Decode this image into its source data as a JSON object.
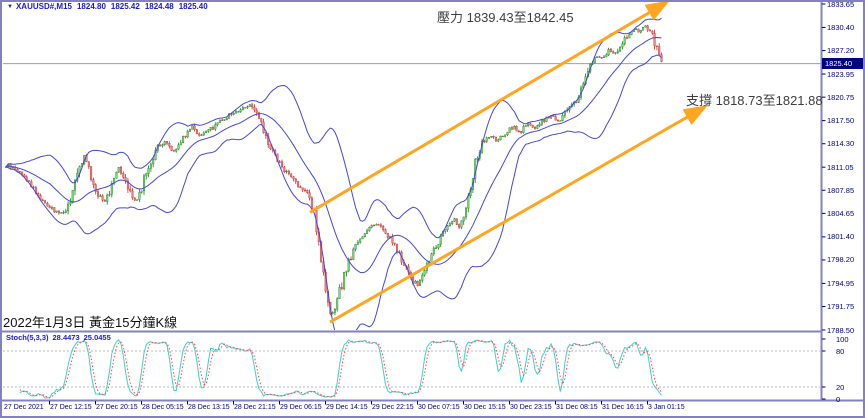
{
  "header": {
    "dropdown_icon": "▼",
    "symbol": "XAUUSD#,M15",
    "open": "1824.80",
    "high": "1825.42",
    "low": "1824.48",
    "close": "1825.40"
  },
  "annotations": {
    "resistance": "壓力 1839.43至1842.45",
    "support": "支撐 1818.73至1821.88",
    "caption": "2022年1月3日 黃金15分鐘K線"
  },
  "price_axis": {
    "tick_labels": [
      "1833.65",
      "1830.40",
      "1827.20",
      "1823.95",
      "1820.75",
      "1817.50",
      "1814.30",
      "1811.05",
      "1807.85",
      "1804.65",
      "1801.40",
      "1798.20",
      "1794.95",
      "1791.75",
      "1788.50"
    ],
    "current_price": "1825.40"
  },
  "stoch_panel": {
    "name": "Stoch(5,3,3)",
    "k": "28.4473",
    "d": "25.0455",
    "levels": [
      "100",
      "80",
      "20",
      "0"
    ]
  },
  "time_axis": {
    "labels": [
      "27 Dec 2021",
      "27 Dec 12:15",
      "27 Dec 20:15",
      "28 Dec 05:15",
      "28 Dec 13:15",
      "28 Dec 21:15",
      "29 Dec 06:15",
      "29 Dec 14:15",
      "29 Dec 22:15",
      "30 Dec 07:15",
      "30 Dec 15:15",
      "30 Dec 23:15",
      "31 Dec 08:15",
      "31 Dec 16:15",
      "3 Jan 01:15"
    ]
  },
  "chart_data": {
    "type": "candlestick",
    "symbol": "XAUUSD#",
    "timeframe": "M15",
    "title": "2022年1月3日 黃金15分鐘K線",
    "last_ohlc": {
      "open": 1824.8,
      "high": 1825.42,
      "low": 1824.48,
      "close": 1825.4
    },
    "last_price": 1825.4,
    "resistance_zone": [
      1839.43,
      1842.45
    ],
    "support_zone": [
      1818.73,
      1821.88
    ],
    "y_axis": {
      "max": 1833.65,
      "min": 1788.5,
      "ticks": [
        1833.65,
        1830.4,
        1827.2,
        1823.95,
        1820.75,
        1817.5,
        1814.3,
        1811.05,
        1807.85,
        1804.65,
        1801.4,
        1798.2,
        1794.95,
        1791.75,
        1788.5
      ]
    },
    "x_axis": {
      "ticks": [
        "27 Dec 2021",
        "27 Dec 12:15",
        "27 Dec 20:15",
        "28 Dec 05:15",
        "28 Dec 13:15",
        "28 Dec 21:15",
        "29 Dec 06:15",
        "29 Dec 14:15",
        "29 Dec 22:15",
        "30 Dec 07:15",
        "30 Dec 15:15",
        "30 Dec 23:15",
        "31 Dec 08:15",
        "31 Dec 16:15",
        "3 Jan 01:15"
      ]
    },
    "indicators": {
      "bollinger": {
        "period": 20,
        "deviation": 2
      },
      "stochastic": {
        "settings": [
          5,
          3,
          3
        ],
        "k": 28.4473,
        "d": 25.0455,
        "levels": [
          80,
          20
        ],
        "range": [
          0,
          100
        ]
      }
    },
    "trend_channel": {
      "upper": [
        [
          310,
          1804.8
        ],
        [
          662,
          1833.5
        ]
      ],
      "lower": [
        [
          330,
          1789.6
        ],
        [
          700,
          1819.0
        ]
      ]
    },
    "price_path_anchors": [
      [
        8,
        1811.2
      ],
      [
        18,
        1810.6
      ],
      [
        28,
        1809.2
      ],
      [
        40,
        1806.8
      ],
      [
        52,
        1805.2
      ],
      [
        62,
        1804.6
      ],
      [
        70,
        1806.0
      ],
      [
        78,
        1810.5
      ],
      [
        84,
        1812.6
      ],
      [
        90,
        1810.0
      ],
      [
        98,
        1807.2
      ],
      [
        106,
        1806.3
      ],
      [
        112,
        1809.0
      ],
      [
        118,
        1811.3
      ],
      [
        126,
        1809.3
      ],
      [
        134,
        1806.2
      ],
      [
        140,
        1807.5
      ],
      [
        148,
        1811.0
      ],
      [
        158,
        1813.8
      ],
      [
        166,
        1814.6
      ],
      [
        174,
        1813.2
      ],
      [
        182,
        1815.0
      ],
      [
        192,
        1816.8
      ],
      [
        200,
        1815.4
      ],
      [
        210,
        1816.2
      ],
      [
        220,
        1817.5
      ],
      [
        230,
        1818.3
      ],
      [
        240,
        1819.0
      ],
      [
        250,
        1819.8
      ],
      [
        258,
        1818.0
      ],
      [
        266,
        1815.2
      ],
      [
        274,
        1812.8
      ],
      [
        282,
        1811.0
      ],
      [
        292,
        1809.6
      ],
      [
        300,
        1808.4
      ],
      [
        308,
        1807.0
      ],
      [
        314,
        1805.0
      ],
      [
        320,
        1799.5
      ],
      [
        326,
        1793.0
      ],
      [
        331,
        1790.2
      ],
      [
        336,
        1791.8
      ],
      [
        341,
        1794.5
      ],
      [
        348,
        1797.8
      ],
      [
        356,
        1800.2
      ],
      [
        364,
        1801.8
      ],
      [
        372,
        1803.2
      ],
      [
        380,
        1803.0
      ],
      [
        388,
        1801.6
      ],
      [
        396,
        1799.8
      ],
      [
        404,
        1797.6
      ],
      [
        412,
        1795.4
      ],
      [
        418,
        1794.8
      ],
      [
        424,
        1796.6
      ],
      [
        432,
        1799.0
      ],
      [
        440,
        1801.2
      ],
      [
        448,
        1803.0
      ],
      [
        454,
        1804.0
      ],
      [
        458,
        1802.6
      ],
      [
        464,
        1804.5
      ],
      [
        470,
        1808.0
      ],
      [
        476,
        1812.0
      ],
      [
        482,
        1814.2
      ],
      [
        490,
        1815.3
      ],
      [
        498,
        1814.6
      ],
      [
        506,
        1816.0
      ],
      [
        514,
        1816.6
      ],
      [
        520,
        1815.8
      ],
      [
        528,
        1817.2
      ],
      [
        536,
        1816.4
      ],
      [
        544,
        1817.6
      ],
      [
        552,
        1818.2
      ],
      [
        560,
        1817.4
      ],
      [
        568,
        1819.2
      ],
      [
        576,
        1820.2
      ],
      [
        583,
        1822.5
      ],
      [
        590,
        1825.2
      ],
      [
        597,
        1826.4
      ],
      [
        603,
        1826.0
      ],
      [
        609,
        1827.4
      ],
      [
        615,
        1826.6
      ],
      [
        621,
        1828.2
      ],
      [
        628,
        1829.4
      ],
      [
        634,
        1830.2
      ],
      [
        640,
        1829.6
      ],
      [
        645,
        1830.8
      ],
      [
        650,
        1829.8
      ],
      [
        654,
        1828.6
      ],
      [
        658,
        1826.8
      ],
      [
        661,
        1825.8
      ],
      [
        663,
        1825.4
      ]
    ],
    "colors": {
      "bull": "#7EDC7E",
      "bull_edge": "#1f7a1f",
      "bear": "#F48080",
      "bear_edge": "#c03030",
      "bollinger": "#4646D8",
      "trend": "#FFA520",
      "stoch_k": "#3FD0C8",
      "stoch_d": "#FF4444",
      "frame": "#8282c0",
      "axis_text": "#00007F",
      "current_line": "#9aa0a8",
      "badge_bg": "#000080"
    }
  }
}
